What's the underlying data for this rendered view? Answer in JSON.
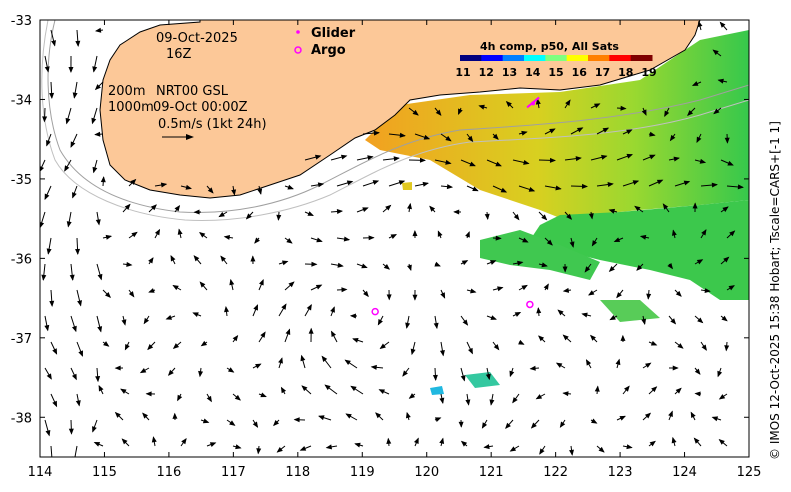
{
  "info": {
    "date": "09-Oct-2025",
    "hour": "16Z",
    "isobath_200": "200m",
    "isobath_1000": "1000m",
    "model": "NRT00 GSL",
    "model_time": "09-Oct 00:00Z",
    "scale_label": "0.5m/s (1kt 24h)"
  },
  "legend": {
    "glider_label": "Glider",
    "argo_label": "Argo",
    "glider_color": "#ff00ff",
    "argo_color": "#ff00ff"
  },
  "colorbar": {
    "title": "4h comp, p50, All Sats",
    "ticks": [
      "11",
      "12",
      "13",
      "14",
      "15",
      "16",
      "17",
      "18",
      "19"
    ],
    "colors": [
      "#00007f",
      "#0000ff",
      "#007fff",
      "#00ffff",
      "#7fff7f",
      "#ffff00",
      "#ff7f00",
      "#ff0000",
      "#7f0000"
    ]
  },
  "axes": {
    "x_ticks": [
      "114",
      "115",
      "116",
      "117",
      "118",
      "119",
      "120",
      "121",
      "122",
      "123",
      "124",
      "125"
    ],
    "y_ticks": [
      "-33",
      "-34",
      "-35",
      "-36",
      "-37",
      "-38"
    ],
    "lon_range": [
      114,
      125
    ],
    "lat_range": [
      -38.5,
      -33
    ]
  },
  "argo_floats": [
    {
      "lon": 119.2,
      "lat": -36.67
    },
    {
      "lon": 121.6,
      "lat": -36.58
    }
  ],
  "glider": {
    "lon": 121.65,
    "lat": -34.05
  },
  "credit": "© IMOS 12-Oct-2025 15:38 Hobart; Tscale=CARS+[-1 1]",
  "colors": {
    "land": "#fcc898",
    "sst_warm": "#f0a030",
    "sst_mid": "#9cd630",
    "sst_cool": "#2ec850",
    "sst_cold": "#20d0b0"
  }
}
